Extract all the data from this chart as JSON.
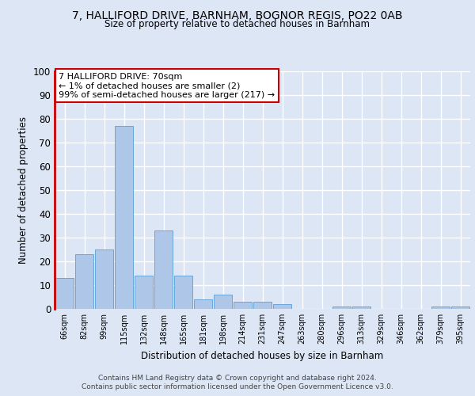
{
  "title1": "7, HALLIFORD DRIVE, BARNHAM, BOGNOR REGIS, PO22 0AB",
  "title2": "Size of property relative to detached houses in Barnham",
  "xlabel": "Distribution of detached houses by size in Barnham",
  "ylabel": "Number of detached properties",
  "bar_color": "#aec6e8",
  "bar_edge_color": "#5a9fd4",
  "categories": [
    "66sqm",
    "82sqm",
    "99sqm",
    "115sqm",
    "132sqm",
    "148sqm",
    "165sqm",
    "181sqm",
    "198sqm",
    "214sqm",
    "231sqm",
    "247sqm",
    "263sqm",
    "280sqm",
    "296sqm",
    "313sqm",
    "329sqm",
    "346sqm",
    "362sqm",
    "379sqm",
    "395sqm"
  ],
  "values": [
    13,
    23,
    25,
    77,
    14,
    33,
    14,
    4,
    6,
    3,
    3,
    2,
    0,
    0,
    1,
    1,
    0,
    0,
    0,
    1,
    1
  ],
  "ylim": [
    0,
    100
  ],
  "yticks": [
    0,
    10,
    20,
    30,
    40,
    50,
    60,
    70,
    80,
    90,
    100
  ],
  "annotation_text": "7 HALLIFORD DRIVE: 70sqm\n← 1% of detached houses are smaller (2)\n99% of semi-detached houses are larger (217) →",
  "annotation_box_color": "#ffffff",
  "annotation_box_edge": "#cc0000",
  "footer1": "Contains HM Land Registry data © Crown copyright and database right 2024.",
  "footer2": "Contains public sector information licensed under the Open Government Licence v3.0.",
  "background_color": "#dce6f5",
  "plot_bg_color": "#dce6f5",
  "grid_color": "#ffffff",
  "marker_color": "#cc0000"
}
